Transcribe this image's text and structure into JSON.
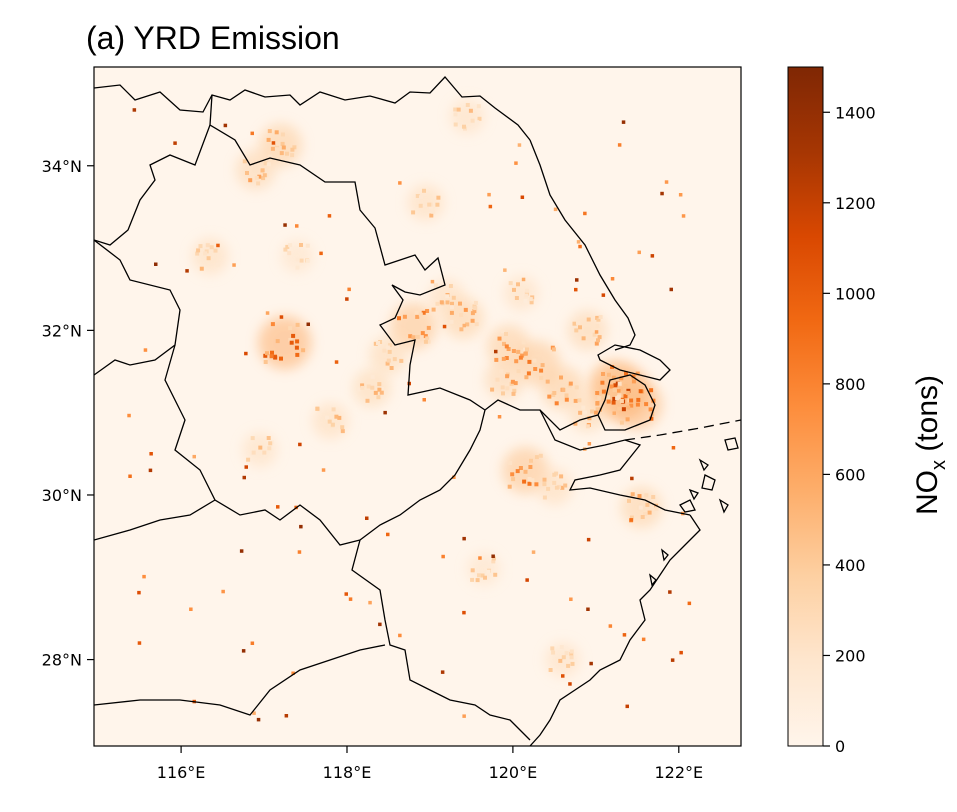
{
  "title": "(a) YRD Emission",
  "map": {
    "lon_range": [
      114.95,
      122.75
    ],
    "lat_range": [
      26.95,
      35.2
    ],
    "x_ticks": [
      {
        "value": 116,
        "label": "116°E"
      },
      {
        "value": 118,
        "label": "118°E"
      },
      {
        "value": 120,
        "label": "120°E"
      },
      {
        "value": 122,
        "label": "122°E"
      }
    ],
    "y_ticks": [
      {
        "value": 34,
        "label": "34°N"
      },
      {
        "value": 32,
        "label": "32°N"
      },
      {
        "value": 30,
        "label": "30°N"
      },
      {
        "value": 28,
        "label": "28°N"
      }
    ],
    "background_color": "#fff5eb"
  },
  "colorbar": {
    "label_main": "NO",
    "label_sub": "x",
    "label_rest": " (tons)",
    "range": [
      0,
      1500
    ],
    "ticks": [
      {
        "value": 0,
        "label": "0"
      },
      {
        "value": 200,
        "label": "200"
      },
      {
        "value": 400,
        "label": "400"
      },
      {
        "value": 600,
        "label": "600"
      },
      {
        "value": 800,
        "label": "800"
      },
      {
        "value": 1000,
        "label": "1000"
      },
      {
        "value": 1200,
        "label": "1200"
      },
      {
        "value": 1400,
        "label": "1400"
      }
    ],
    "colormap": "Oranges",
    "color_low": "#fff5eb",
    "color_high": "#7f2704"
  },
  "hotspots": [
    {
      "lon": 121.3,
      "lat": 31.25,
      "value": 1100
    },
    {
      "lon": 121.5,
      "lat": 31.1,
      "value": 900
    },
    {
      "lon": 121.2,
      "lat": 31.35,
      "value": 800
    },
    {
      "lon": 120.6,
      "lat": 31.3,
      "value": 700
    },
    {
      "lon": 120.3,
      "lat": 31.6,
      "value": 750
    },
    {
      "lon": 119.95,
      "lat": 31.8,
      "value": 700
    },
    {
      "lon": 119.4,
      "lat": 32.15,
      "value": 650
    },
    {
      "lon": 118.8,
      "lat": 32.05,
      "value": 800
    },
    {
      "lon": 118.5,
      "lat": 31.7,
      "value": 550
    },
    {
      "lon": 117.25,
      "lat": 31.85,
      "value": 1000
    },
    {
      "lon": 117.2,
      "lat": 34.25,
      "value": 700
    },
    {
      "lon": 116.9,
      "lat": 33.95,
      "value": 600
    },
    {
      "lon": 118.95,
      "lat": 33.55,
      "value": 500
    },
    {
      "lon": 120.15,
      "lat": 30.3,
      "value": 800
    },
    {
      "lon": 121.55,
      "lat": 29.85,
      "value": 650
    },
    {
      "lon": 120.6,
      "lat": 28.0,
      "value": 450
    },
    {
      "lon": 119.65,
      "lat": 29.1,
      "value": 400
    },
    {
      "lon": 116.35,
      "lat": 32.9,
      "value": 500
    },
    {
      "lon": 117.4,
      "lat": 32.9,
      "value": 400
    },
    {
      "lon": 118.3,
      "lat": 31.3,
      "value": 550
    },
    {
      "lon": 117.8,
      "lat": 30.9,
      "value": 500
    },
    {
      "lon": 116.95,
      "lat": 30.55,
      "value": 450
    },
    {
      "lon": 120.9,
      "lat": 32.0,
      "value": 600
    },
    {
      "lon": 120.1,
      "lat": 32.45,
      "value": 450
    },
    {
      "lon": 119.45,
      "lat": 34.6,
      "value": 450
    },
    {
      "lon": 119.2,
      "lat": 32.4,
      "value": 500
    },
    {
      "lon": 120.9,
      "lat": 31.0,
      "value": 550
    },
    {
      "lon": 120.5,
      "lat": 30.1,
      "value": 500
    },
    {
      "lon": 119.9,
      "lat": 31.4,
      "value": 600
    }
  ]
}
